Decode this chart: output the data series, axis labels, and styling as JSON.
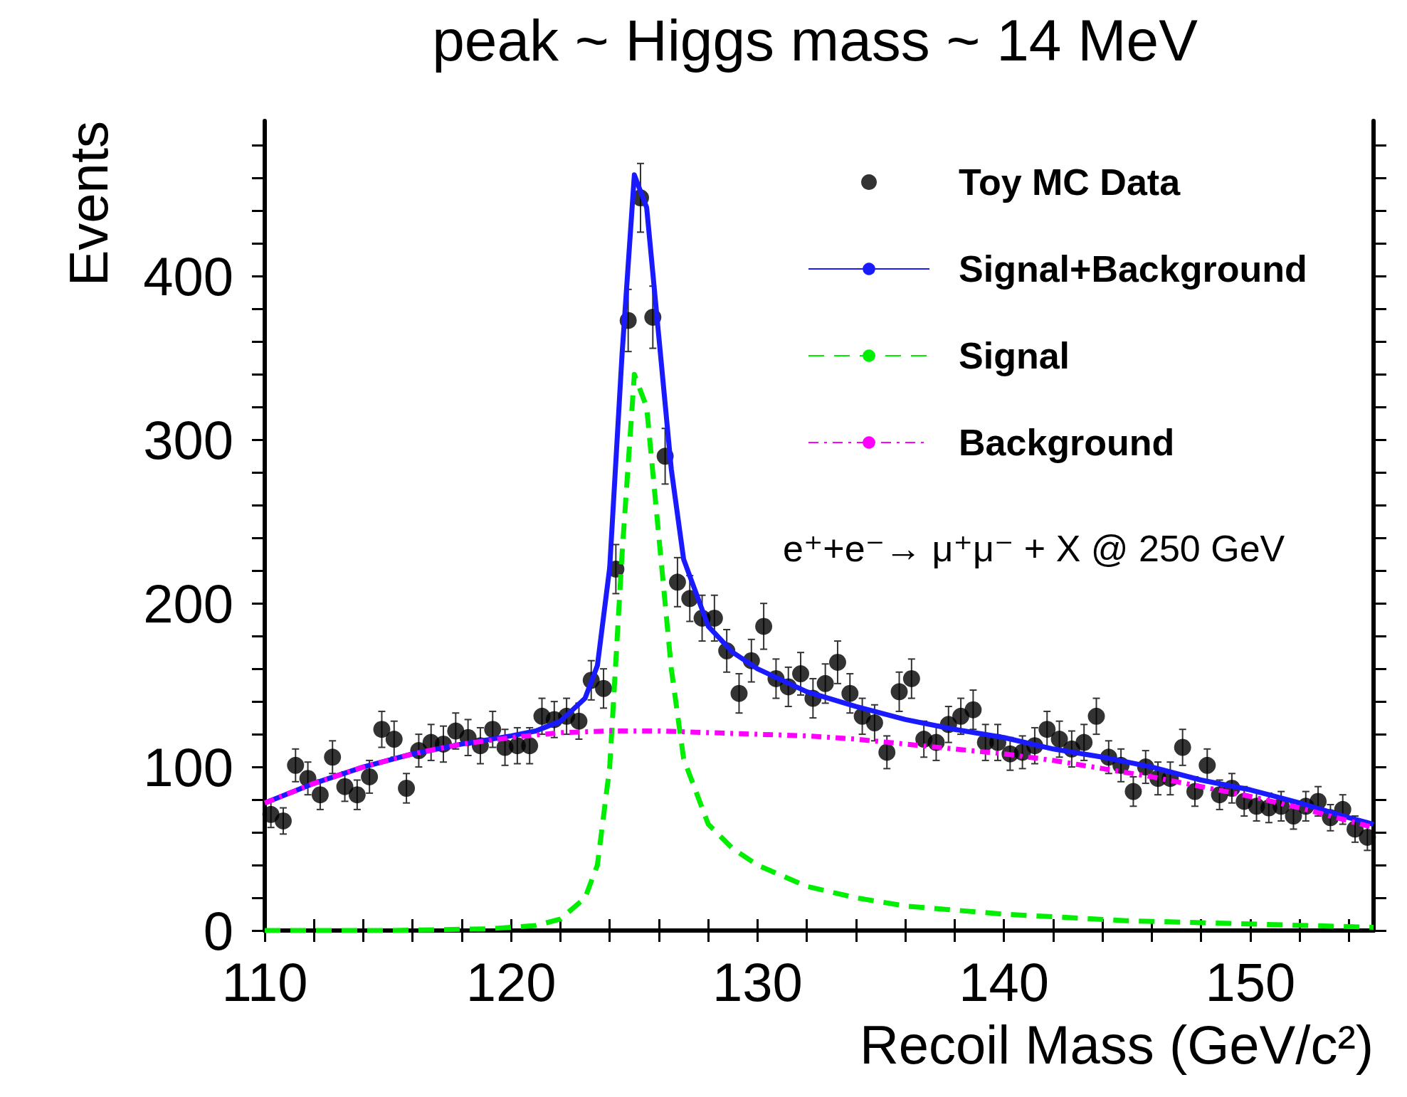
{
  "chart_data": {
    "type": "scatter",
    "title": "peak ~ Higgs mass ~ 14 MeV",
    "xlabel": "Recoil Mass (GeV/c²)",
    "ylabel": "Events",
    "annotations": [
      "e⁺+e⁻→ μ⁺μ⁻ + X @ 250 GeV"
    ],
    "xlim": [
      110,
      155
    ],
    "xticks": [
      110,
      {
        "value": 112,
        "label": null
      },
      {
        "value": 114,
        "label": null
      },
      {
        "value": 116,
        "label": null
      },
      {
        "value": 118,
        "label": null
      },
      120,
      {
        "value": 122,
        "label": null
      },
      {
        "value": 124,
        "label": null
      },
      {
        "value": 126,
        "label": null
      },
      {
        "value": 128,
        "label": null
      },
      130,
      {
        "value": 132,
        "label": null
      },
      {
        "value": 134,
        "label": null
      },
      {
        "value": 136,
        "label": null
      },
      {
        "value": 138,
        "label": null
      },
      140,
      {
        "value": 142,
        "label": null
      },
      {
        "value": 144,
        "label": null
      },
      {
        "value": 146,
        "label": null
      },
      {
        "value": 148,
        "label": null
      },
      150,
      {
        "value": 152,
        "label": null
      },
      {
        "value": 154,
        "label": null
      }
    ],
    "ylim": [
      0,
      495
    ],
    "yticks": [
      0,
      100,
      200,
      300,
      400
    ],
    "grid": false,
    "legend": "top right",
    "series": [
      {
        "name": "Toy MC Data",
        "color": "#000000",
        "marker": "circle",
        "x": [
          110.25,
          110.75,
          111.25,
          111.75,
          112.25,
          112.75,
          113.25,
          113.75,
          114.25,
          114.75,
          115.25,
          115.75,
          116.25,
          116.75,
          117.25,
          117.75,
          118.25,
          118.75,
          119.25,
          119.75,
          120.25,
          120.75,
          121.25,
          121.75,
          122.25,
          122.75,
          123.25,
          123.75,
          124.25,
          124.75,
          125.25,
          125.75,
          126.25,
          126.75,
          127.25,
          127.75,
          128.25,
          128.75,
          129.25,
          129.75,
          130.25,
          130.75,
          131.25,
          131.75,
          132.25,
          132.75,
          133.25,
          133.75,
          134.25,
          134.75,
          135.25,
          135.75,
          136.25,
          136.75,
          137.25,
          137.75,
          138.25,
          138.75,
          139.25,
          139.75,
          140.25,
          140.75,
          141.25,
          141.75,
          142.25,
          142.75,
          143.25,
          143.75,
          144.25,
          144.75,
          145.25,
          145.75,
          146.25,
          146.75,
          147.25,
          147.75,
          148.25,
          148.75,
          149.25,
          149.75,
          150.25,
          150.75,
          151.25,
          151.75,
          152.25,
          152.75,
          153.25,
          153.75,
          154.25,
          154.75
        ],
        "values": [
          71,
          67,
          101,
          93,
          83,
          106,
          88,
          83,
          94,
          123,
          117,
          87,
          110,
          115,
          114,
          122,
          118,
          113,
          123,
          112,
          113,
          113,
          131,
          129,
          131,
          128,
          153,
          148,
          221,
          373,
          448,
          375,
          290,
          213,
          203,
          191,
          191,
          171,
          145,
          165,
          186,
          154,
          149,
          157,
          142,
          151,
          164,
          145,
          131,
          127,
          109,
          146,
          154,
          117,
          115,
          126,
          131,
          135,
          115,
          115,
          108,
          109,
          113,
          123,
          117,
          111,
          115,
          131,
          106,
          101,
          85,
          100,
          93,
          93,
          112,
          85,
          101,
          83,
          87,
          79,
          76,
          75,
          76,
          70,
          76,
          79,
          69,
          74,
          62,
          57
        ],
        "errors": [
          8,
          8,
          10,
          10,
          9,
          10,
          9,
          9,
          10,
          11,
          11,
          9,
          10,
          11,
          11,
          11,
          11,
          11,
          11,
          11,
          11,
          11,
          11,
          11,
          11,
          11,
          12,
          12,
          15,
          19,
          21,
          19,
          17,
          15,
          14,
          14,
          14,
          13,
          12,
          13,
          14,
          12,
          12,
          13,
          12,
          12,
          13,
          12,
          11,
          11,
          10,
          12,
          12,
          11,
          11,
          11,
          11,
          12,
          11,
          11,
          10,
          10,
          11,
          11,
          11,
          11,
          11,
          11,
          10,
          10,
          9,
          10,
          10,
          10,
          11,
          9,
          10,
          9,
          9,
          9,
          9,
          9,
          9,
          8,
          9,
          9,
          8,
          9,
          8,
          8
        ]
      },
      {
        "name": "Signal+Background",
        "type": "line",
        "color": "#1a1aff",
        "line_style": "solid",
        "marker": "none",
        "x": [
          110,
          112,
          114,
          116,
          118,
          120,
          121,
          122,
          123,
          123.5,
          124,
          124.5,
          125,
          125.5,
          126,
          126.5,
          127,
          128,
          129,
          130,
          132,
          134,
          136,
          138,
          140,
          142,
          144,
          146,
          148,
          150,
          152,
          154,
          155
        ],
        "values": [
          78,
          90,
          100,
          108,
          114,
          119,
          122,
          128,
          142,
          162,
          222,
          352,
          462,
          442,
          362,
          282,
          227,
          186,
          170,
          160,
          146,
          137,
          129,
          123,
          118,
          111,
          106,
          100,
          92,
          86,
          78,
          69,
          65
        ]
      },
      {
        "name": "Signal",
        "type": "line",
        "color": "#00ee00",
        "line_style": "dashed",
        "marker": "none",
        "x": [
          110,
          115,
          119,
          121,
          122,
          123,
          123.5,
          124,
          124.5,
          125,
          125.5,
          126,
          126.5,
          127,
          128,
          129,
          130,
          132,
          134,
          136,
          140,
          145,
          150,
          155
        ],
        "values": [
          0,
          0,
          1,
          3,
          7,
          20,
          40,
          100,
          230,
          340,
          320,
          240,
          160,
          105,
          65,
          50,
          40,
          27,
          20,
          15,
          10,
          6,
          4,
          2
        ]
      },
      {
        "name": "Background",
        "type": "line",
        "color": "#ff00ff",
        "line_style": "dotted",
        "marker": "none",
        "x": [
          110,
          112,
          114,
          116,
          118,
          120,
          122,
          124,
          126,
          128,
          130,
          132,
          134,
          136,
          138,
          140,
          142,
          144,
          146,
          148,
          150,
          152,
          154,
          155
        ],
        "values": [
          78,
          90,
          100,
          108,
          114,
          118,
          121,
          122,
          122,
          121,
          120,
          119,
          117,
          114,
          111,
          108,
          104,
          99,
          94,
          88,
          82,
          75,
          67,
          63
        ]
      }
    ]
  }
}
